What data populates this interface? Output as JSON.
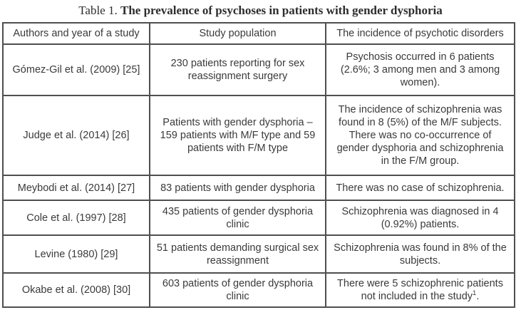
{
  "caption": {
    "prefix": "Table 1. ",
    "title": "The prevalence of psychoses in patients with gender dysphoria"
  },
  "table": {
    "headers": [
      "Authors and year of a study",
      "Study population",
      "The incidence of psychotic disorders"
    ],
    "rows": [
      {
        "authors": "Gómez-Gil et al. (2009) [25]",
        "population": "230 patients reporting for sex reassignment surgery",
        "incidence": "Psychosis occurred in 6 patients (2.6%; 3 among men and 3 among women)."
      },
      {
        "authors": "Judge et al. (2014) [26]",
        "population": "Patients with gender dysphoria – 159 patients with M/F type and 59 patients with F/M type",
        "incidence": "The incidence of schizophrenia was found in 8 (5%) of the M/F subjects. There was no co-occurrence of gender dysphoria and schizophrenia in the F/M group."
      },
      {
        "authors": "Meybodi et al. (2014) [27]",
        "population": "83 patients with gender dysphoria",
        "incidence": "There was no case of schizophrenia."
      },
      {
        "authors": "Cole et al. (1997) [28]",
        "population": "435 patients of gender dysphoria clinic",
        "incidence": "Schizophrenia was diagnosed in 4 (0.92%) patients."
      },
      {
        "authors": "Levine (1980) [29]",
        "population": "51 patients demanding surgical sex reassignment",
        "incidence": "Schizophrenia was found in 8% of the subjects."
      },
      {
        "authors": "Okabe et al. (2008) [30]",
        "population": "603 patients of gender dysphoria clinic",
        "incidence_text": "There were 5 schizophrenic patients not included in the study",
        "incidence_footnote_mark": "1",
        "incidence_period": "."
      }
    ]
  },
  "colors": {
    "text": "#3a3a3a",
    "border": "#4f4f4f",
    "background": "#ffffff"
  }
}
